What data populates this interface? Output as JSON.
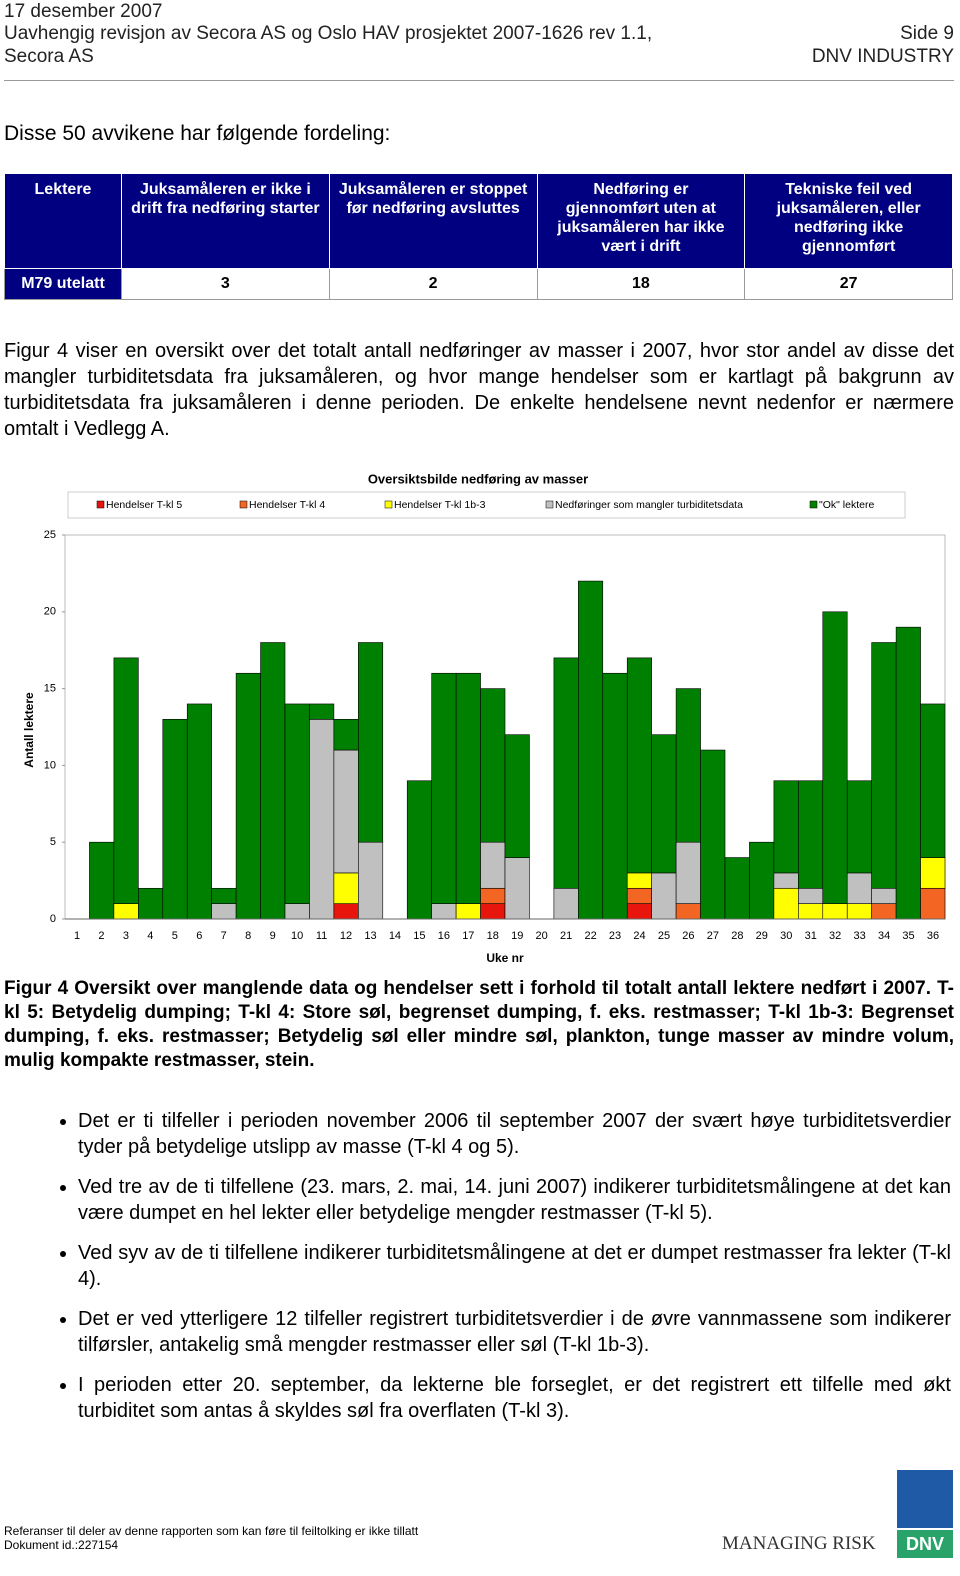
{
  "header": {
    "date": "17 desember 2007",
    "title": "Uavhengig revisjon av Secora AS og Oslo HAV prosjektet  2007-1626 rev 1.1,",
    "page": "Side 9",
    "client": "Secora AS",
    "company": "DNV INDUSTRY"
  },
  "intro": "Disse 50 avvikene har følgende fordeling:",
  "table": {
    "header": [
      "Lektere",
      "Juksamåleren er ikke i drift fra nedføring starter",
      "Juksamåleren er stoppet før nedføring avsluttes",
      "Nedføring er gjennomført uten at juksamåleren har ikke vært i drift",
      "Tekniske feil ved juksamåleren, eller nedføring ikke gjennomført"
    ],
    "rows": [
      [
        "M79 utelatt",
        3,
        2,
        18,
        27
      ]
    ]
  },
  "paragraph": "Figur 4 viser en oversikt over det totalt antall nedføringer av masser i 2007, hvor stor andel av disse det mangler turbiditetsdata fra juksamåleren, og hvor mange hendelser som er kartlagt på bakgrunn av turbiditetsdata fra juksamåleren i denne perioden. De enkelte hendelsene nevnt nedenfor er nærmere omtalt i Vedlegg A.",
  "chart_data": {
    "type": "stacked-bar",
    "title": "Oversiktsbilde nedføring av masser",
    "y_label": "Antall lektere",
    "x_label": "Uke nr",
    "legend": "top",
    "ylim": [
      0,
      25
    ],
    "yticks": [
      0,
      5,
      10,
      15,
      20,
      25
    ],
    "categories": [
      "1",
      "2",
      "3",
      "4",
      "5",
      "6",
      "7",
      "8",
      "9",
      "10",
      "11",
      "12",
      "13",
      "14",
      "15",
      "16",
      "17",
      "18",
      "19",
      "20",
      "21",
      "22",
      "23",
      "24",
      "25",
      "26",
      "27",
      "28",
      "29",
      "30",
      "31",
      "32",
      "33",
      "34",
      "35",
      "36"
    ],
    "series": [
      {
        "name": "Hendelser T-kl 5",
        "color": "#e8150c",
        "values": [
          0,
          0,
          0,
          0,
          0,
          0,
          0,
          0,
          0,
          0,
          0,
          1,
          0,
          0,
          0,
          0,
          0,
          1,
          0,
          0,
          0,
          0,
          0,
          1,
          0,
          0,
          0,
          0,
          0,
          0,
          0,
          0,
          0,
          0,
          0,
          0
        ]
      },
      {
        "name": "Hendelser T-kl 4",
        "color": "#f26522",
        "values": [
          0,
          0,
          0,
          0,
          0,
          0,
          0,
          0,
          0,
          0,
          0,
          0,
          0,
          0,
          0,
          0,
          0,
          1,
          0,
          0,
          0,
          0,
          0,
          1,
          0,
          1,
          0,
          0,
          0,
          0,
          0,
          0,
          0,
          1,
          0,
          2
        ]
      },
      {
        "name": "Hendelser T-kl 1b-3",
        "color": "#ffff00",
        "values": [
          0,
          0,
          1,
          0,
          0,
          0,
          0,
          0,
          0,
          0,
          0,
          2,
          0,
          0,
          0,
          0,
          1,
          0,
          0,
          0,
          0,
          0,
          0,
          1,
          0,
          0,
          0,
          0,
          0,
          2,
          1,
          1,
          1,
          0,
          0,
          2
        ]
      },
      {
        "name": "Nedføringer som mangler turbiditetsdata",
        "color": "#c0c0c0",
        "values": [
          0,
          0,
          0,
          0,
          0,
          0,
          1,
          0,
          0,
          1,
          13,
          8,
          5,
          0,
          0,
          1,
          0,
          3,
          4,
          0,
          2,
          0,
          0,
          0,
          3,
          4,
          0,
          0,
          0,
          1,
          1,
          0,
          2,
          1,
          0,
          0
        ]
      },
      {
        "name": "\"Ok\" lektere",
        "color": "#008000",
        "values": [
          0,
          5,
          16,
          2,
          13,
          14,
          1,
          16,
          18,
          13,
          1,
          2,
          13,
          0,
          9,
          15,
          15,
          10,
          8,
          0,
          15,
          22,
          16,
          14,
          9,
          10,
          11,
          4,
          5,
          6,
          7,
          19,
          6,
          16,
          19,
          10
        ]
      }
    ]
  },
  "caption": "Figur 4 Oversikt over manglende data og hendelser sett i forhold til totalt antall lektere nedført i 2007. T-kl 5: Betydelig dumping; T-kl 4: Store søl, begrenset dumping, f. eks. restmasser; T-kl 1b-3: Begrenset dumping, f. eks. restmasser; Betydelig søl eller mindre søl, plankton, tunge masser av mindre volum, mulig kompakte restmasser, stein.",
  "bullets": [
    "Det er ti tilfeller i perioden november 2006 til september 2007 der svært høye turbiditetsverdier tyder på betydelige utslipp av masse (T-kl 4 og 5).",
    "Ved tre av de ti tilfellene (23. mars, 2. mai, 14. juni 2007) indikerer turbiditetsmålingene at det kan være dumpet en hel lekter eller betydelige mengder restmasser (T-kl 5).",
    "Ved syv av de ti tilfellene indikerer turbiditetsmålingene at det er dumpet restmasser fra lekter (T-kl 4).",
    "Det er ved ytterligere 12 tilfeller registrert turbiditetsverdier i de øvre vannmassene som indikerer tilførsler, antakelig små mengder restmasser eller søl (T-kl 1b-3).",
    "I perioden etter 20. september, da lekterne ble forseglet, er det registrert ett tilfelle med økt turbiditet som antas å skyldes søl fra overflaten (T-kl 3)."
  ],
  "footer": {
    "note": "Referanser til deler av denne rapporten som kan føre til feiltolking er ikke tillatt",
    "doc_id": "Dokument id.:227154",
    "logo_text": "MANAGING RISK",
    "logo_mark": "DNV"
  }
}
